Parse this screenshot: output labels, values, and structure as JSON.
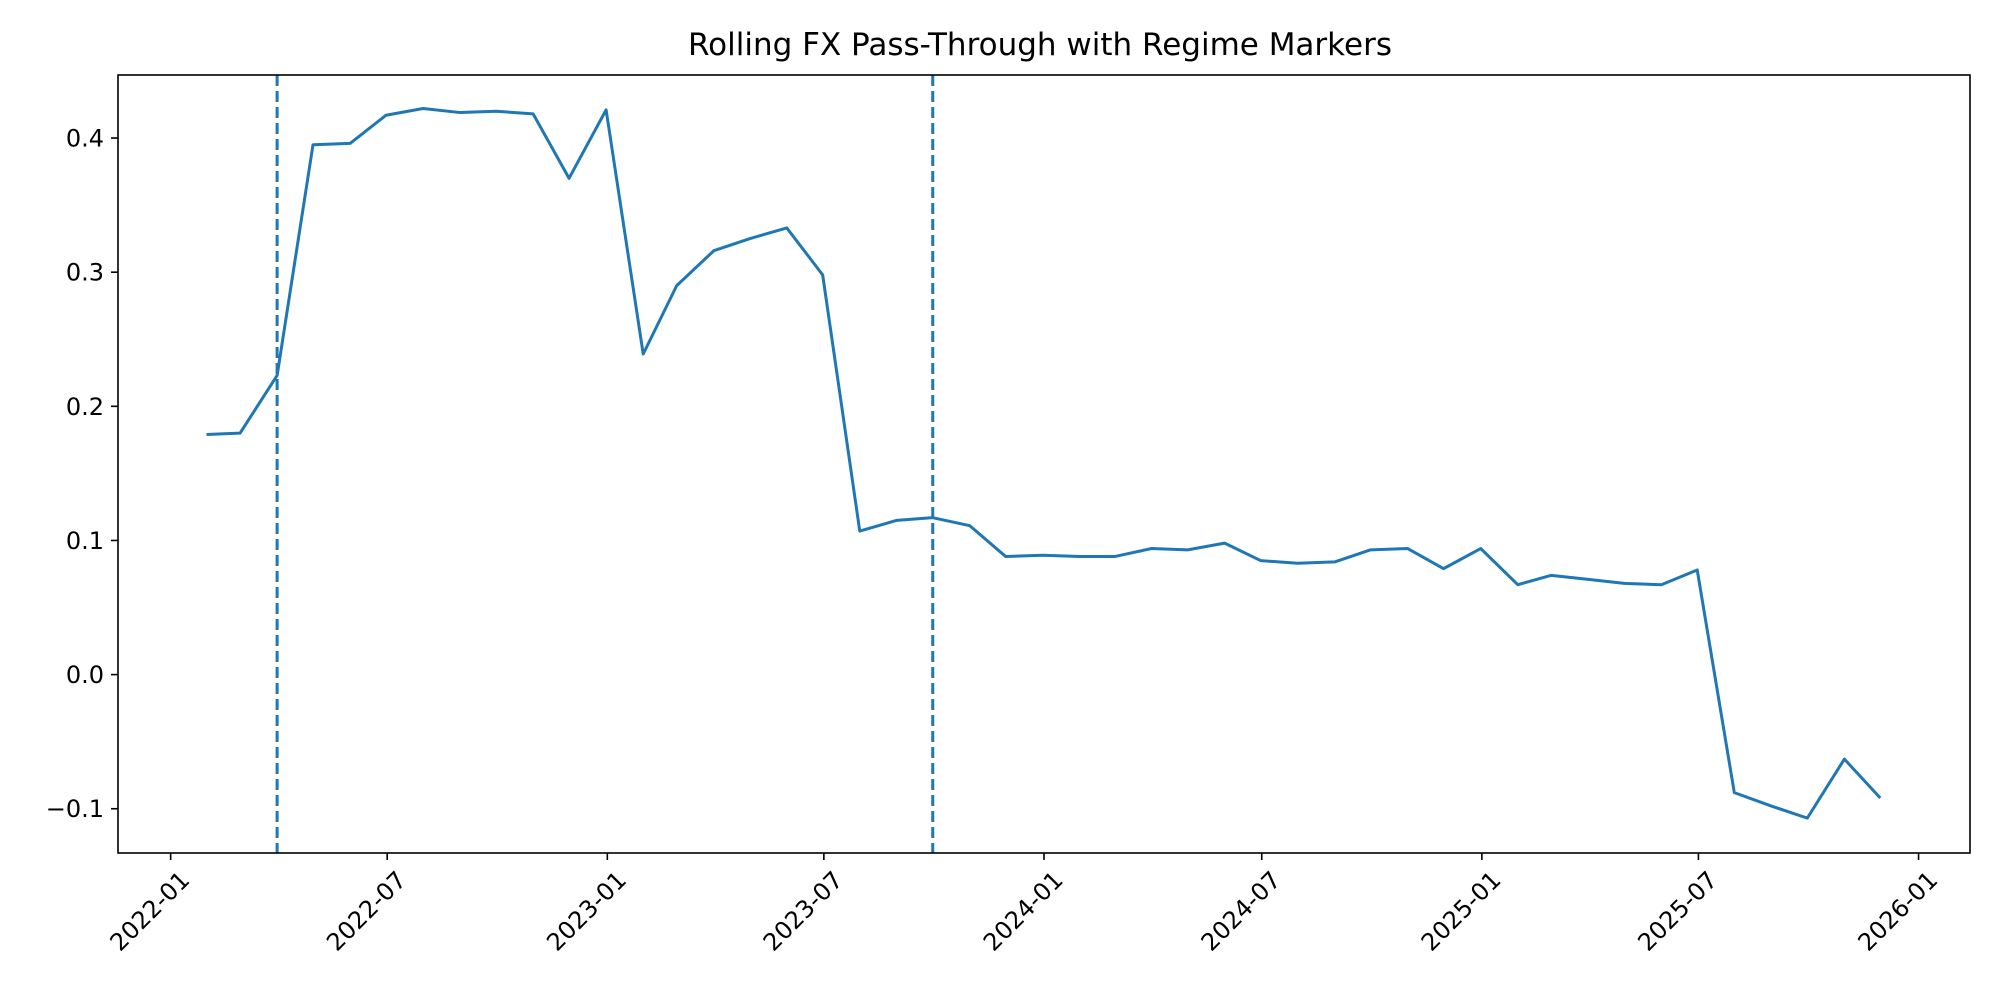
{
  "chart_data": {
    "type": "line",
    "title": "Rolling FX Pass-Through with Regime Markers",
    "xlabel": "",
    "ylabel": "",
    "xlim": [
      "2021-11-18",
      "2026-02-13"
    ],
    "ylim": [
      -0.133,
      0.447
    ],
    "x_tick_labels": [
      "2022-01",
      "2022-07",
      "2023-01",
      "2023-07",
      "2024-01",
      "2024-07",
      "2025-01",
      "2025-07",
      "2026-01"
    ],
    "y_tick_labels": [
      "−0.1",
      "0.0",
      "0.1",
      "0.2",
      "0.3",
      "0.4"
    ],
    "y_ticks": [
      -0.1,
      0.0,
      0.1,
      0.2,
      0.3,
      0.4
    ],
    "grid": false,
    "legend": "none",
    "series": [
      {
        "color": "#1f77b4",
        "x": [
          "2022-01-31",
          "2022-02-28",
          "2022-03-31",
          "2022-04-30",
          "2022-05-31",
          "2022-06-30",
          "2022-07-31",
          "2022-08-31",
          "2022-09-30",
          "2022-10-31",
          "2022-11-30",
          "2022-12-31",
          "2023-01-31",
          "2023-02-28",
          "2023-03-31",
          "2023-04-30",
          "2023-05-31",
          "2023-06-30",
          "2023-07-31",
          "2023-08-31",
          "2023-09-30",
          "2023-10-31",
          "2023-11-30",
          "2023-12-31",
          "2024-01-31",
          "2024-02-29",
          "2024-03-31",
          "2024-04-30",
          "2024-05-31",
          "2024-06-30",
          "2024-07-31",
          "2024-08-31",
          "2024-09-30",
          "2024-10-31",
          "2024-11-30",
          "2024-12-31",
          "2025-01-31",
          "2025-02-28",
          "2025-03-31",
          "2025-04-30",
          "2025-05-31",
          "2025-06-30",
          "2025-07-31",
          "2025-08-31",
          "2025-09-30",
          "2025-10-31",
          "2025-11-30"
        ],
        "values": [
          0.179,
          0.18,
          0.223,
          0.395,
          0.396,
          0.417,
          0.422,
          0.419,
          0.42,
          0.418,
          0.37,
          0.421,
          0.239,
          0.29,
          0.316,
          0.325,
          0.333,
          0.298,
          0.107,
          0.115,
          0.117,
          0.111,
          0.088,
          0.089,
          0.088,
          0.088,
          0.094,
          0.093,
          0.098,
          0.085,
          0.083,
          0.084,
          0.093,
          0.094,
          0.079,
          0.094,
          0.067,
          0.074,
          0.071,
          0.068,
          0.067,
          0.078,
          -0.088,
          -0.098,
          -0.107,
          -0.063,
          -0.092
        ]
      }
    ],
    "regime_markers": {
      "color": "#1f77b4",
      "style": "dashed",
      "x": [
        "2022-03-31",
        "2023-09-30"
      ]
    },
    "axis_color": "#000000"
  }
}
